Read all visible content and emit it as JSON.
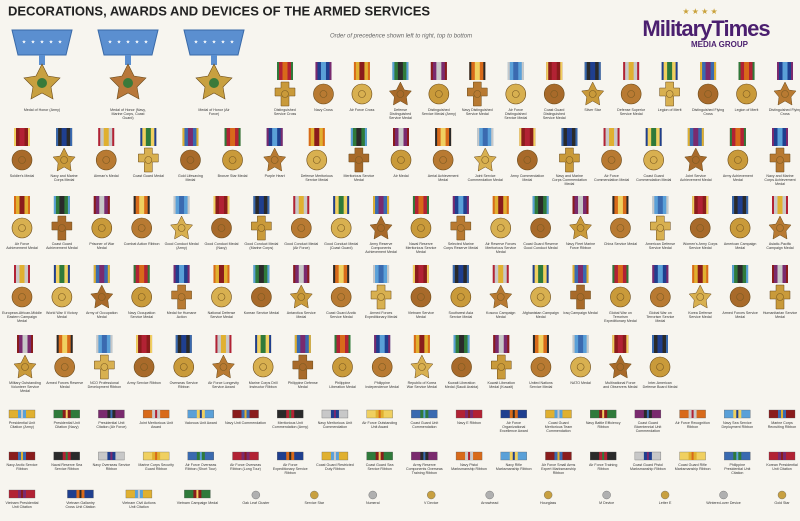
{
  "header": {
    "title": "DECORATIONS, AWARDS AND DEVICES OF THE ARMED SERVICES",
    "logo": "MilitaryTimes",
    "logo_sub": "MEDIA GROUP",
    "note": "Order of precedence shown left to right, top to bottom"
  },
  "medals_of_honor": [
    "Medal of Honor (Army)",
    "Medal of Honor (Navy, Marine Corps, Coast Guard)",
    "Medal of Honor (Air Force)"
  ],
  "medal_rows": [
    [
      "Distinguished Service Cross",
      "Navy Cross",
      "Air Force Cross",
      "Defense Distinguished Service Medal",
      "Distinguished Service Medal (Army)",
      "Navy Distinguished Service Medal",
      "Air Force Distinguished Service Medal",
      "Coast Guard Distinguished Service Medal",
      "Silver Star",
      "Defense Superior Service Medal",
      "Legion of Merit",
      "Distinguished Flying Cross",
      "Legion of Merit",
      "Distinguished Flying Cross"
    ],
    [
      "Soldier's Medal",
      "Navy and Marine Corps Medal",
      "Airman's Medal",
      "Coast Guard Medal",
      "Gold Lifesaving Medal",
      "Bronze Star Medal",
      "Purple Heart",
      "Defense Meritorious Service Medal",
      "Meritorious Service Medal",
      "Air Medal",
      "Aerial Achievement Medal",
      "Joint Service Commendation Medal",
      "Army Commendation Medal",
      "Navy and Marine Corps Commendation Medal",
      "Air Force Commendation Medal",
      "Coast Guard Commendation Medal",
      "Joint Service Achievement Medal",
      "Army Achievement Medal",
      "Navy and Marine Corps Achievement Medal"
    ],
    [
      "Air Force Achievement Medal",
      "Coast Guard Achievement Medal",
      "Prisoner of War Medal",
      "Combat Action Ribbon",
      "Good Conduct Medal (Army)",
      "Good Conduct Medal (Navy)",
      "Good Conduct Medal (Marine Corps)",
      "Good Conduct Medal (Air Force)",
      "Good Conduct Medal (Coast Guard)",
      "Army Reserve Components Achievement Medal",
      "Naval Reserve Meritorious Service Medal",
      "Selected Marine Corps Reserve Medal",
      "Air Reserve Forces Meritorious Service Medal",
      "Coast Guard Reserve Good Conduct Medal",
      "Navy Fleet Marine Force Ribbon",
      "China Service Medal",
      "American Defense Service Medal",
      "Women's Army Corps Service Medal",
      "American Campaign Medal",
      "Asiatic-Pacific Campaign Medal"
    ],
    [
      "European-African-Middle Eastern Campaign Medal",
      "World War II Victory Medal",
      "Army of Occupation Medal",
      "Navy Occupation Service Medal",
      "Medal for Humane Action",
      "National Defense Service Medal",
      "Korean Service Medal",
      "Antarctica Service Medal",
      "Coast Guard Arctic Service Medal",
      "Armed Forces Expeditionary Medal",
      "Vietnam Service Medal",
      "Southwest Asia Service Medal",
      "Kosovo Campaign Medal",
      "Afghanistan Campaign Medal",
      "Iraq Campaign Medal",
      "Global War on Terrorism Expeditionary Medal",
      "Global War on Terrorism Service Medal",
      "Korea Defense Service Medal",
      "Armed Forces Service Medal",
      "Humanitarian Service Medal"
    ],
    [
      "Military Outstanding Volunteer Service Medal",
      "Armed Forces Reserve Medal",
      "NCO Professional Development Ribbon",
      "Army Service Ribbon",
      "Overseas Service Ribbon",
      "Air Force Longevity Service Award",
      "Marine Corps Drill Instructor Ribbon",
      "Philippine Defense Medal",
      "Philippine Liberation Medal",
      "Philippine Independence Medal",
      "Republic of Korea War Service Medal",
      "Kuwait Liberation Medal (Saudi Arabia)",
      "Kuwait Liberation Medal (Kuwait)",
      "United Nations Service Medal",
      "NATO Medal",
      "Multinational Force and Observers Medal",
      "Inter-American Defense Board Medal"
    ]
  ],
  "ribbon_rows": [
    [
      "Presidential Unit Citation (Army)",
      "Presidential Unit Citation (Navy)",
      "Presidential Unit Citation (Air Force)",
      "Joint Meritorious Unit Award",
      "Valorous Unit Award",
      "Navy Unit Commendation",
      "Meritorious Unit Commendation (Army)",
      "Navy Meritorious Unit Commendation",
      "Air Force Outstanding Unit Award",
      "Coast Guard Unit Commendation",
      "Navy E Ribbon",
      "Air Force Organizational Excellence Award",
      "Coast Guard Meritorious Team Commendation",
      "Navy Battle Efficiency Ribbon",
      "Coast Guard Bicentennial Unit Commendation",
      "Air Force Recognition Ribbon",
      "Navy Sea Service Deployment Ribbon",
      "Marine Corps Recruiting Ribbon"
    ],
    [
      "Navy Arctic Service Ribbon",
      "Naval Reserve Sea Service Ribbon",
      "Navy Overseas Service Ribbon",
      "Marine Corps Security Guard Ribbon",
      "Air Force Overseas Ribbon (Short Tour)",
      "Air Force Overseas Ribbon (Long Tour)",
      "Air Force Expeditionary Service Ribbon",
      "Coast Guard Restricted Duty Ribbon",
      "Coast Guard Sea Service Ribbon",
      "Army Reserve Components Overseas Training Ribbon",
      "Navy Pistol Marksmanship Ribbon",
      "Navy Rifle Marksmanship Ribbon",
      "Air Force Small Arms Expert Marksmanship Ribbon",
      "Air Force Training Ribbon",
      "Coast Guard Pistol Marksmanship Ribbon",
      "Coast Guard Rifle Marksmanship Ribbon",
      "Philippine Presidential Unit Citation",
      "Korean Presidential Unit Citation"
    ],
    [
      "Vietnam Presidential Unit Citation",
      "Vietnam Gallantry Cross Unit Citation",
      "Vietnam Civil Actions Unit Citation",
      "Vietnam Campaign Medal",
      "Oak Leaf Cluster",
      "Service Star",
      "Numeral",
      "V Device",
      "Arrowhead",
      "Hourglass",
      "M Device",
      "Letter E",
      "Wintered-over Device",
      "Gold Star"
    ]
  ]
}
